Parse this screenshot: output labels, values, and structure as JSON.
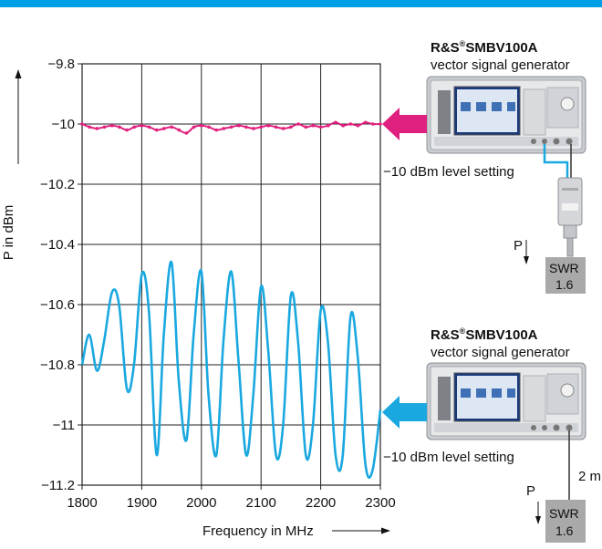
{
  "chart_data": {
    "type": "line",
    "xlabel": "Frequency in MHz",
    "ylabel": "P in dBm",
    "xlim": [
      1800,
      2300
    ],
    "ylim": [
      -11.2,
      -9.8
    ],
    "x_ticks": [
      "1800",
      "1900",
      "2000",
      "2100",
      "2200",
      "2300"
    ],
    "y_ticks": [
      "−9.8",
      "−10",
      "−10.2",
      "−10.4",
      "−10.6",
      "−10.8",
      "−11",
      "−11.2"
    ],
    "grid": true,
    "series": [
      {
        "color": "#e0207e",
        "x": [
          1800,
          1812.5,
          1825,
          1837.5,
          1850,
          1862.5,
          1875,
          1887.5,
          1900,
          1912.5,
          1925,
          1937.5,
          1950,
          1962.5,
          1975,
          1987.5,
          2000,
          2012.5,
          2025,
          2037.5,
          2050,
          2062.5,
          2075,
          2087.5,
          2100,
          2112.5,
          2125,
          2137.5,
          2150,
          2162.5,
          2175,
          2187.5,
          2200,
          2212.5,
          2225,
          2237.5,
          2250,
          2262.5,
          2275,
          2287.5,
          2300
        ],
        "values": [
          -10.0,
          -10.01,
          -10.015,
          -10.01,
          -10.005,
          -10.01,
          -10.02,
          -10.01,
          -10.005,
          -10.01,
          -10.02,
          -10.015,
          -10.01,
          -10.02,
          -10.03,
          -10.01,
          -10.005,
          -10.01,
          -10.02,
          -10.015,
          -10.01,
          -10.005,
          -10.01,
          -10.015,
          -10.01,
          -10.005,
          -10.01,
          -10.015,
          -10.01,
          -10.0,
          -10.01,
          -10.005,
          -10.01,
          -10.005,
          -9.995,
          -10.005,
          -10.0,
          -10.005,
          -9.995,
          -10.0,
          -10.0
        ]
      },
      {
        "color": "#1aa8e0",
        "x": [
          1800,
          1812,
          1825,
          1837,
          1850,
          1862,
          1875,
          1887,
          1900,
          1912,
          1925,
          1937,
          1950,
          1962,
          1975,
          1987,
          2000,
          2012,
          2025,
          2037,
          2050,
          2062,
          2075,
          2087,
          2100,
          2112,
          2125,
          2137,
          2150,
          2162,
          2175,
          2187,
          2200,
          2212,
          2225,
          2237,
          2250,
          2262,
          2275,
          2287,
          2300
        ],
        "values": [
          -10.8,
          -10.7,
          -10.82,
          -10.72,
          -10.56,
          -10.6,
          -10.88,
          -10.8,
          -10.5,
          -10.62,
          -11.1,
          -10.7,
          -10.46,
          -10.85,
          -11.05,
          -10.7,
          -10.49,
          -10.9,
          -11.1,
          -10.72,
          -10.49,
          -10.78,
          -11.1,
          -10.9,
          -10.54,
          -10.75,
          -11.1,
          -11.0,
          -10.57,
          -10.72,
          -11.1,
          -11.0,
          -10.62,
          -10.72,
          -11.1,
          -11.1,
          -10.64,
          -10.77,
          -11.13,
          -11.15,
          -10.95
        ]
      }
    ]
  },
  "diagram": {
    "device_name": "R&S",
    "device_name_sup": "®",
    "device_model": "SMBV100A",
    "device_type": "vector signal generator",
    "level_setting": "−10 dBm level setting",
    "p_label": "P",
    "swr_label": "SWR",
    "swr_value": "1.6",
    "cable_label": "2 m"
  },
  "colors": {
    "accent": "#00a0e6",
    "magenta": "#e0207e",
    "cyan": "#1aa8e0",
    "swr_box": "#a9a9a9"
  }
}
